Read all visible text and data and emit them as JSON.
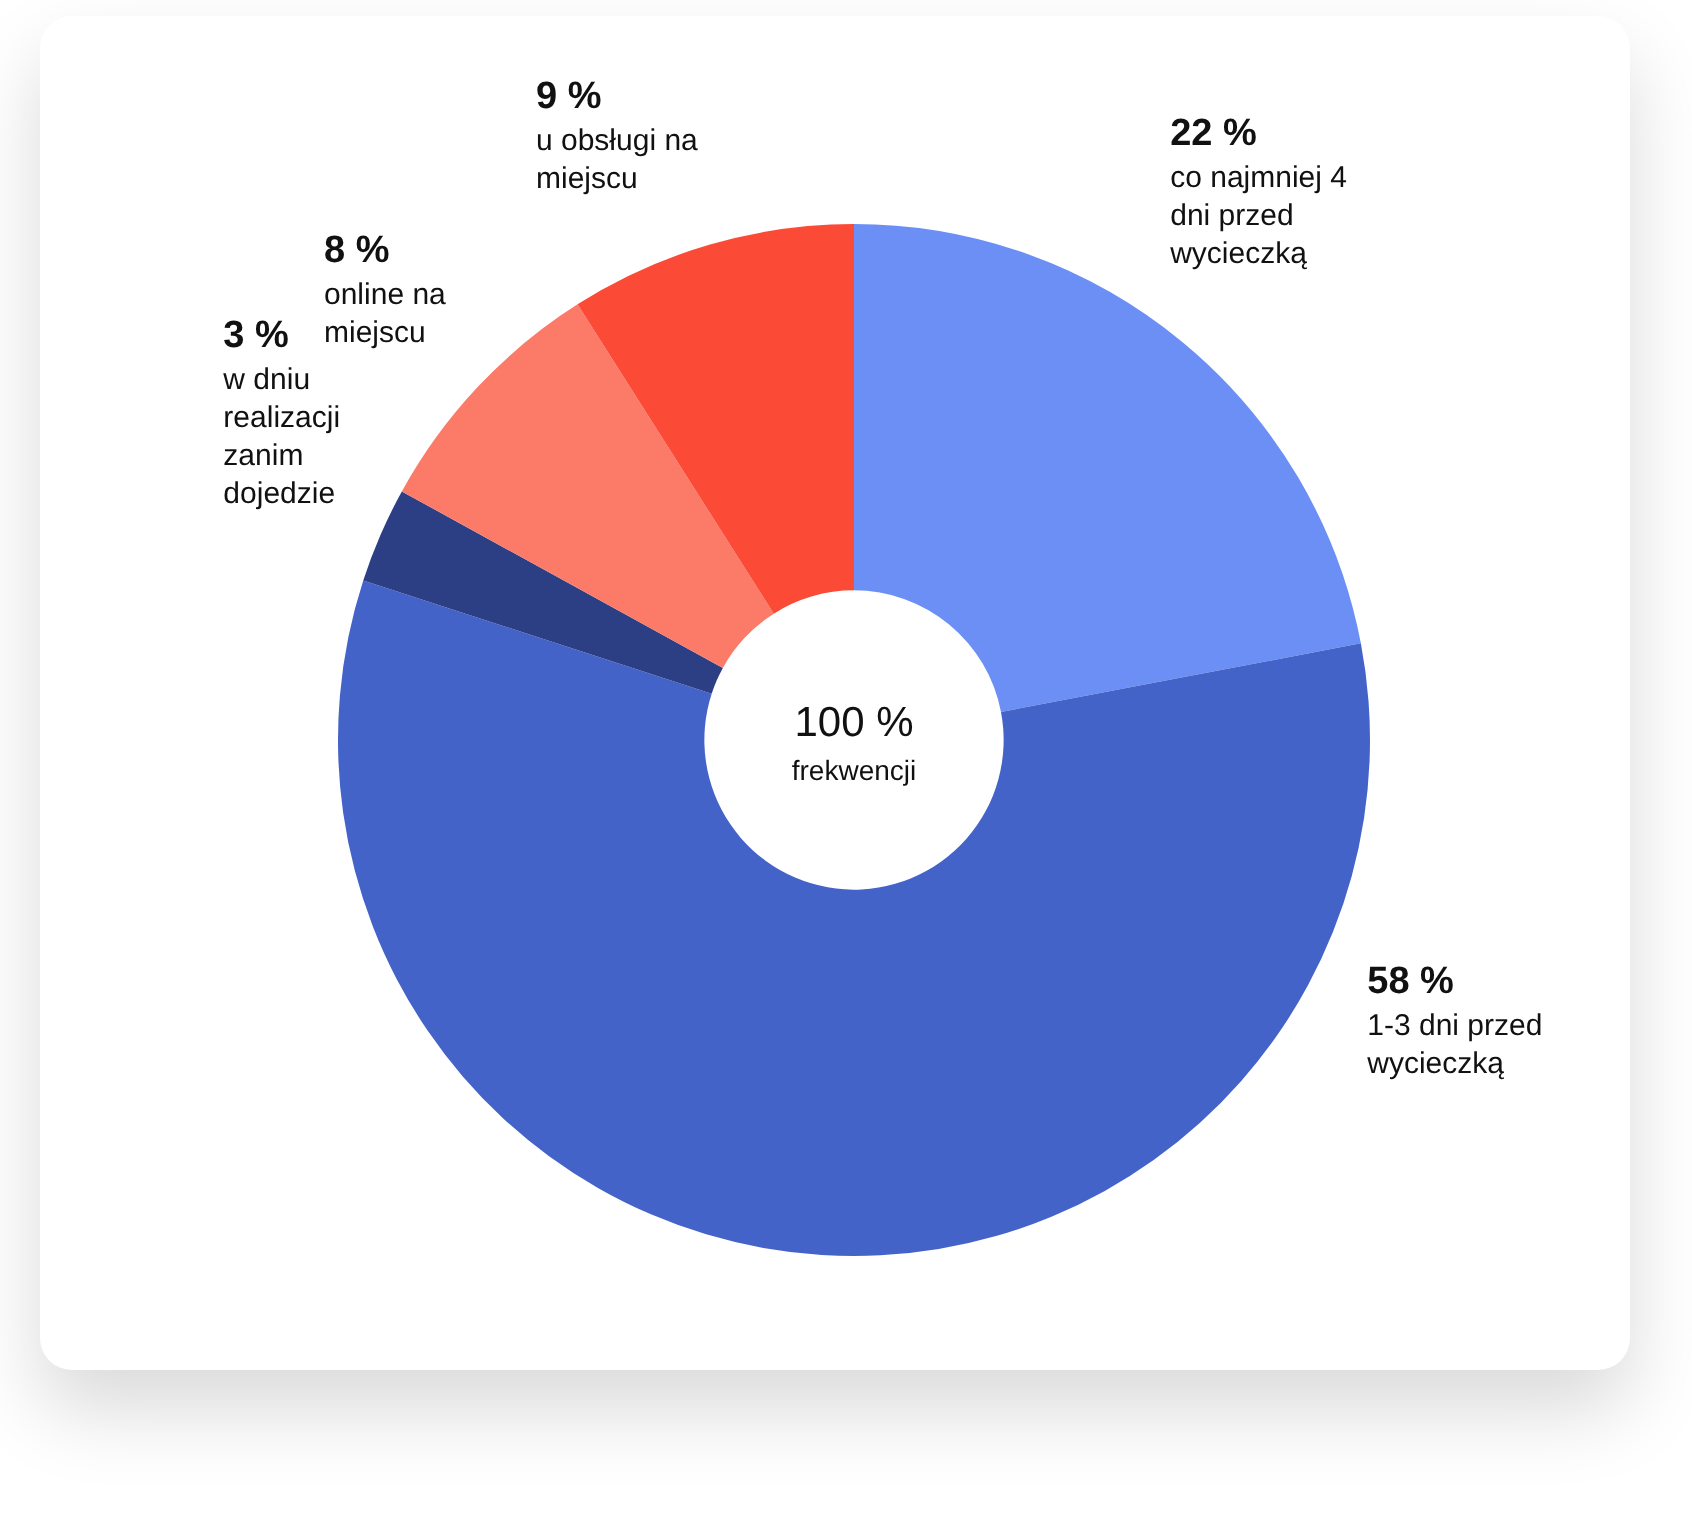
{
  "chart_data": {
    "type": "donut",
    "categories": [
      "co najmniej 4 dni przed wycieczką",
      "1-3 dni przed wycieczką",
      "w dniu realizacji zanim dojedzie",
      "online na miejscu",
      "u obsługi na miejscu"
    ],
    "values": [
      22,
      58,
      3,
      8,
      9
    ],
    "colors": [
      "#6b8ff5",
      "#4463c9",
      "#2c3f85",
      "#fb7a68",
      "#fb4a35"
    ],
    "value_labels": [
      "22 %",
      "58 %",
      "3 %",
      "8 %",
      "9 %"
    ],
    "annotations": [
      "100 %",
      "frekwencji"
    ],
    "legend": false
  }
}
